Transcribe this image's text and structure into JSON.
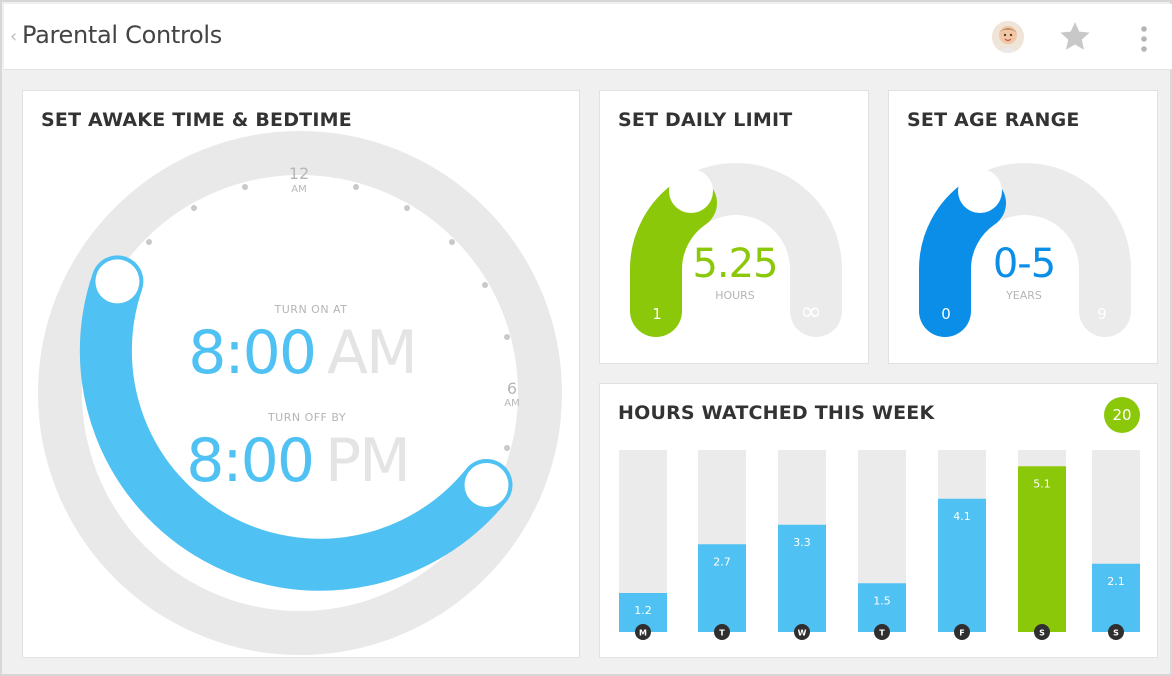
{
  "header": {
    "back_glyph": "‹",
    "title": "Parental Controls",
    "icons": [
      "back-chevron-icon",
      "avatar",
      "star-icon",
      "more-vert-icon"
    ]
  },
  "sleep": {
    "title": "SET AWAKE TIME & BEDTIME",
    "dial_labels": {
      "top_hour": "12",
      "top_meridiem": "AM",
      "right_hour": "6",
      "right_meridiem": "AM"
    },
    "turn_on_label": "TURN ON AT",
    "turn_on_time": "8:00",
    "turn_on_meridiem": "AM",
    "turn_off_label": "TURN OFF BY",
    "turn_off_time": "8:00",
    "turn_off_meridiem": "PM",
    "accent": "#4fc1f3"
  },
  "daily_limit": {
    "title": "SET DAILY LIMIT",
    "value": "5.25",
    "unit": "HOURS",
    "min_label": "1",
    "max_label": "∞",
    "accent": "#8cc80a"
  },
  "age_range": {
    "title": "SET AGE RANGE",
    "value": "0-5",
    "unit": "YEARS",
    "min_label": "0",
    "max_label": "9",
    "accent": "#0a8ee8"
  },
  "week": {
    "title": "HOURS WATCHED THIS WEEK",
    "total": "20",
    "highlight_color": "#8cc80a",
    "bar_color": "#4fc1f3"
  },
  "chart_data": {
    "type": "bar",
    "categories": [
      "M",
      "T",
      "W",
      "T",
      "F",
      "S",
      "S"
    ],
    "values": [
      1.2,
      2.7,
      3.3,
      1.5,
      4.1,
      5.1,
      2.1
    ],
    "value_labels": [
      "1.2",
      "2.7",
      "3.3",
      "1.5",
      "4.1",
      "5.1",
      "2.1"
    ],
    "highlight_index": 5,
    "title": "HOURS WATCHED THIS WEEK",
    "xlabel": "",
    "ylabel": "",
    "ylim": [
      0,
      5.6
    ]
  }
}
